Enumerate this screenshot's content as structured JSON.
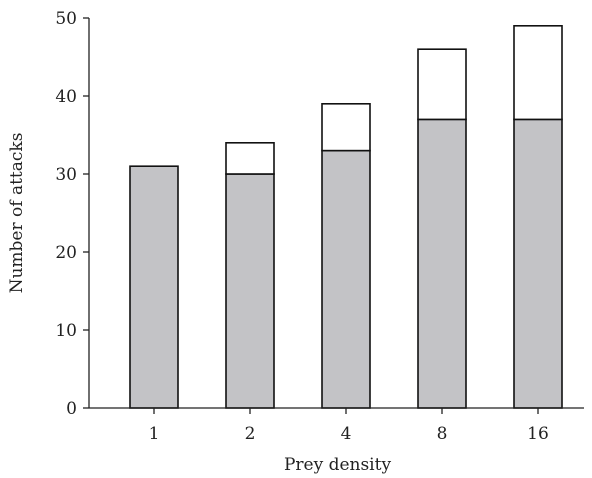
{
  "chart_data": {
    "type": "bar",
    "stacked": true,
    "categories": [
      "1",
      "2",
      "4",
      "8",
      "16"
    ],
    "series": [
      {
        "values": [
          31,
          30,
          33,
          37,
          37
        ],
        "color": "#c3c3c6"
      },
      {
        "values": [
          0,
          4,
          6,
          9,
          12
        ],
        "color": "#ffffff"
      }
    ],
    "totals": [
      31,
      34,
      39,
      46,
      49
    ],
    "xlabel": "Prey density",
    "ylabel": "Number of attacks",
    "ylim": [
      0,
      50
    ],
    "yticks": [
      "0",
      "10",
      "20",
      "30",
      "40",
      "50"
    ],
    "grid": false,
    "legend": false
  }
}
